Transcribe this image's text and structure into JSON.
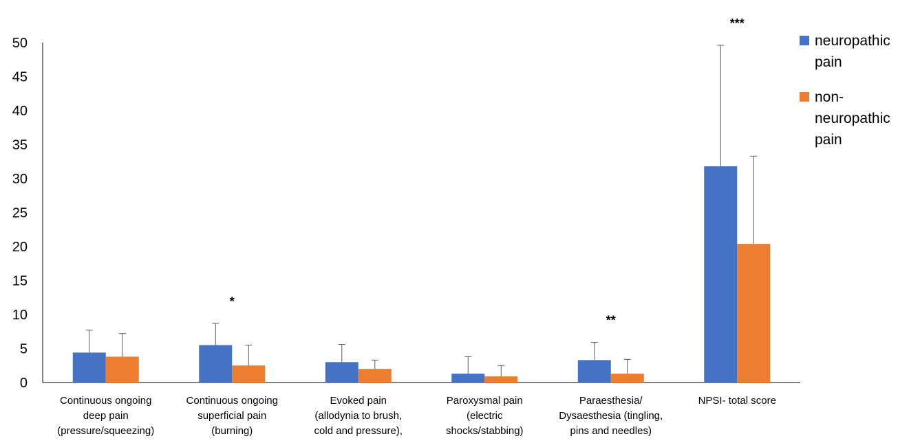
{
  "chart_data": {
    "type": "bar",
    "categories": [
      [
        "Continuous ongoing",
        "deep pain",
        "(pressure/squeezing)"
      ],
      [
        "Continuous ongoing",
        "superficial pain",
        "(burning)"
      ],
      [
        "Evoked pain",
        "(allodynia to brush,",
        "cold and pressure),"
      ],
      [
        "Paroxysmal pain",
        "(electric",
        "shocks/stabbing)"
      ],
      [
        "Paraesthesia/",
        "Dysaesthesia (tingling,",
        "pins and needles)"
      ],
      [
        "NPSI- total score"
      ]
    ],
    "series": [
      {
        "name": [
          "neuropathic",
          "pain"
        ],
        "color": "#4472C4",
        "values": [
          4.4,
          5.5,
          3.0,
          1.3,
          3.3,
          31.8
        ],
        "errors": [
          3.3,
          3.2,
          2.6,
          2.5,
          2.6,
          17.8
        ]
      },
      {
        "name": [
          "non-",
          "neuropathic",
          "pain"
        ],
        "color": "#ED7D31",
        "values": [
          3.8,
          2.5,
          2.0,
          0.9,
          1.3,
          20.4
        ],
        "errors": [
          3.4,
          3.0,
          1.3,
          1.6,
          2.1,
          12.9
        ]
      }
    ],
    "significance": [
      "",
      "*",
      "",
      "",
      "**",
      "***"
    ],
    "ylim": [
      0,
      50
    ],
    "yticks": [
      0,
      5,
      10,
      15,
      20,
      25,
      30,
      35,
      40,
      45,
      50
    ],
    "xlabel": "",
    "ylabel": "",
    "title": "",
    "grid": false,
    "legend": "top-right"
  }
}
